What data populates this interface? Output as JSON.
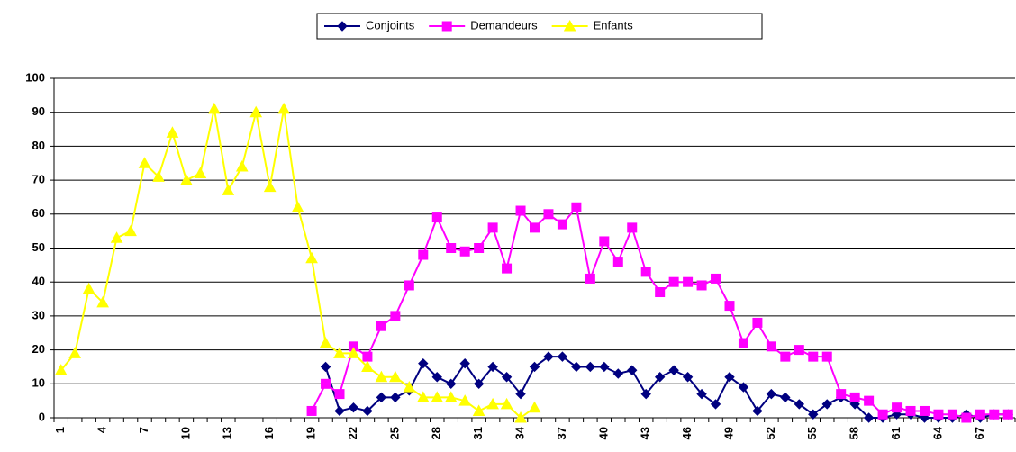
{
  "chart_data": {
    "type": "line",
    "categories": [
      1,
      null,
      null,
      4,
      null,
      null,
      7,
      null,
      null,
      10,
      null,
      null,
      13,
      null,
      null,
      16,
      null,
      null,
      19,
      null,
      null,
      22,
      null,
      null,
      25,
      null,
      null,
      28,
      null,
      null,
      31,
      null,
      null,
      34,
      null,
      null,
      37,
      null,
      null,
      40,
      null,
      null,
      43,
      null,
      null,
      46,
      null,
      null,
      49,
      null,
      null,
      52,
      null,
      null,
      55,
      null,
      null,
      58,
      null,
      null,
      61,
      null,
      null,
      64,
      null,
      null,
      67,
      null,
      null
    ],
    "series": [
      {
        "name": "Conjoints",
        "color": "#000080",
        "marker": "diamond",
        "values": [
          null,
          null,
          null,
          null,
          null,
          null,
          null,
          null,
          null,
          null,
          null,
          null,
          null,
          null,
          null,
          null,
          null,
          null,
          null,
          15,
          2,
          3,
          2,
          6,
          6,
          8,
          16,
          12,
          10,
          16,
          10,
          15,
          12,
          7,
          15,
          18,
          18,
          15,
          15,
          15,
          13,
          14,
          7,
          12,
          14,
          12,
          7,
          4,
          12,
          9,
          2,
          7,
          6,
          4,
          1,
          4,
          6,
          4,
          0,
          0,
          1,
          1,
          0,
          0,
          0,
          1,
          0,
          1,
          1
        ]
      },
      {
        "name": "Demandeurs",
        "color": "#ff00ff",
        "marker": "square",
        "values": [
          null,
          null,
          null,
          null,
          null,
          null,
          null,
          null,
          null,
          null,
          null,
          null,
          null,
          null,
          null,
          null,
          null,
          null,
          2,
          10,
          7,
          21,
          18,
          27,
          30,
          39,
          48,
          59,
          50,
          49,
          50,
          56,
          44,
          61,
          56,
          60,
          57,
          62,
          41,
          52,
          46,
          56,
          43,
          37,
          40,
          40,
          39,
          41,
          33,
          22,
          28,
          21,
          18,
          20,
          18,
          18,
          7,
          6,
          5,
          1,
          3,
          2,
          2,
          1,
          1,
          0,
          1,
          1,
          1
        ]
      },
      {
        "name": "Enfants",
        "color": "#ffff00",
        "marker": "triangle",
        "values": [
          14,
          19,
          38,
          34,
          53,
          55,
          75,
          71,
          84,
          70,
          72,
          91,
          67,
          74,
          90,
          68,
          91,
          62,
          47,
          22,
          19,
          19,
          15,
          12,
          12,
          9,
          6,
          6,
          6,
          5,
          2,
          4,
          4,
          0,
          3,
          null,
          null,
          null,
          null,
          null,
          null,
          null,
          null,
          null,
          null,
          null,
          null,
          null,
          null,
          null,
          null,
          null,
          null,
          null,
          null,
          null,
          null,
          null,
          null,
          null,
          null,
          null,
          null,
          null,
          null,
          null,
          null,
          null,
          null
        ]
      }
    ],
    "ylim": [
      0,
      100
    ],
    "yticks": [
      0,
      10,
      20,
      30,
      40,
      50,
      60,
      70,
      80,
      90,
      100
    ],
    "grid": true,
    "legend": "top"
  }
}
